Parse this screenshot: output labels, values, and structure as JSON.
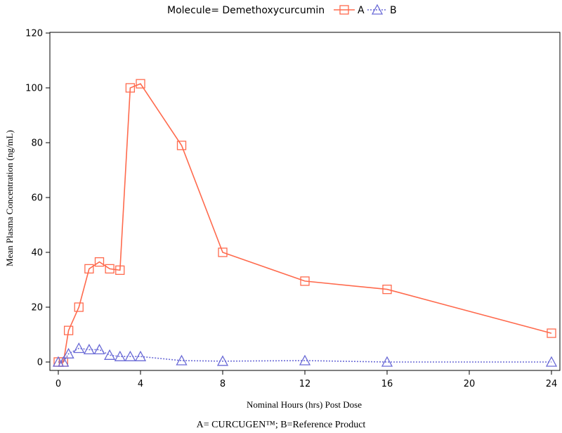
{
  "chart_data": {
    "type": "line",
    "legend_title": "Molecule= Demethoxycurcumin",
    "legend_position": "top",
    "xlabel": "Nominal Hours (hrs) Post Dose",
    "ylabel": "Mean Plasma Concentration (ng/mL)",
    "caption": "A= CURCUGEN™; B=Reference Product",
    "xlim": [
      0,
      24
    ],
    "ylim": [
      0,
      120
    ],
    "xticks": [
      0,
      4,
      8,
      12,
      16,
      20,
      24
    ],
    "yticks": [
      0,
      20,
      40,
      60,
      80,
      100,
      120
    ],
    "grid": false,
    "series": [
      {
        "name": "A",
        "color": "#ff6a4d",
        "marker": "square",
        "line_style": "solid",
        "x": [
          0,
          0.25,
          0.5,
          1,
          1.5,
          2,
          2.5,
          3,
          3.5,
          4,
          6,
          8,
          12,
          16,
          24
        ],
        "y": [
          0,
          0,
          11.5,
          20,
          34,
          36.5,
          34,
          33.5,
          100,
          101.5,
          79,
          40,
          29.5,
          26.5,
          10.5
        ]
      },
      {
        "name": "B",
        "color": "#6a6ad6",
        "marker": "triangle",
        "line_style": "dotted",
        "x": [
          0,
          0.25,
          0.5,
          1,
          1.5,
          2,
          2.5,
          3,
          3.5,
          4,
          6,
          8,
          12,
          16,
          24
        ],
        "y": [
          0,
          0,
          3,
          5,
          4.5,
          4.5,
          2.5,
          2,
          2,
          2,
          0.5,
          0.3,
          0.5,
          0,
          0
        ]
      }
    ]
  }
}
